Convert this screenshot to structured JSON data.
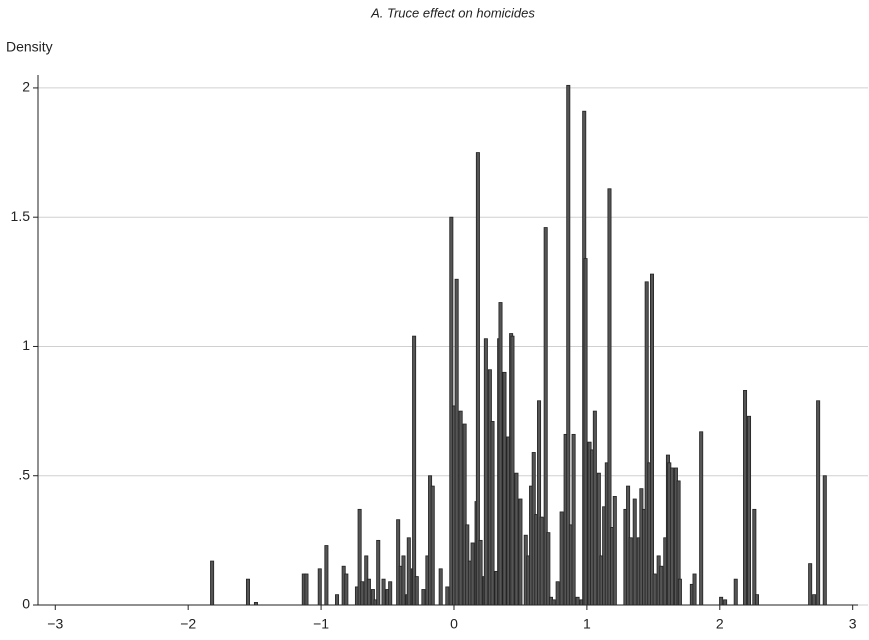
{
  "chart_data": {
    "type": "bar",
    "title": "A. Truce effect on homicides",
    "y_label": "Density",
    "x": [
      -1.82,
      -1.55,
      -1.49,
      -1.13,
      -1.11,
      -1.01,
      -0.96,
      -0.88,
      -0.83,
      -0.81,
      -0.73,
      -0.71,
      -0.69,
      -0.66,
      -0.64,
      -0.61,
      -0.59,
      -0.57,
      -0.53,
      -0.5,
      -0.48,
      -0.42,
      -0.4,
      -0.38,
      -0.35,
      -0.34,
      -0.31,
      -0.3,
      -0.28,
      -0.23,
      -0.2,
      -0.18,
      -0.16,
      -0.1,
      -0.05,
      -0.02,
      0.0,
      0.02,
      0.05,
      0.08,
      0.1,
      0.12,
      0.14,
      0.17,
      0.18,
      0.2,
      0.23,
      0.24,
      0.27,
      0.29,
      0.32,
      0.34,
      0.35,
      0.38,
      0.41,
      0.43,
      0.44,
      0.47,
      0.5,
      0.54,
      0.56,
      0.58,
      0.6,
      0.62,
      0.64,
      0.66,
      0.69,
      0.71,
      0.73,
      0.75,
      0.78,
      0.81,
      0.84,
      0.86,
      0.88,
      0.9,
      0.93,
      0.96,
      0.98,
      0.99,
      1.02,
      1.04,
      1.06,
      1.09,
      1.11,
      1.13,
      1.15,
      1.17,
      1.19,
      1.21,
      1.29,
      1.31,
      1.33,
      1.36,
      1.39,
      1.41,
      1.43,
      1.45,
      1.47,
      1.49,
      1.51,
      1.54,
      1.56,
      1.59,
      1.61,
      1.62,
      1.64,
      1.67,
      1.69,
      1.7,
      1.79,
      1.81,
      1.86,
      2.01,
      2.04,
      2.12,
      2.19,
      2.22,
      2.26,
      2.28,
      2.68,
      2.71,
      2.74,
      2.79
    ],
    "values": [
      0.17,
      0.1,
      0.01,
      0.12,
      0.12,
      0.14,
      0.23,
      0.04,
      0.15,
      0.12,
      0.07,
      0.37,
      0.09,
      0.19,
      0.1,
      0.06,
      0.02,
      0.25,
      0.1,
      0.06,
      0.09,
      0.33,
      0.15,
      0.19,
      0.04,
      0.26,
      0.14,
      1.04,
      0.11,
      0.06,
      0.19,
      0.5,
      0.46,
      0.14,
      0.07,
      1.5,
      0.77,
      1.26,
      0.75,
      0.7,
      0.31,
      0.17,
      0.24,
      0.4,
      1.75,
      0.25,
      0.11,
      1.03,
      0.91,
      0.71,
      0.13,
      1.03,
      1.17,
      0.9,
      0.65,
      1.05,
      1.04,
      0.51,
      0.41,
      0.27,
      0.19,
      0.46,
      0.59,
      0.35,
      0.79,
      0.34,
      1.46,
      0.28,
      0.03,
      0.02,
      0.09,
      0.36,
      0.66,
      2.01,
      0.31,
      0.66,
      0.03,
      0.02,
      1.91,
      1.34,
      0.63,
      0.6,
      0.75,
      0.51,
      0.19,
      0.38,
      0.55,
      1.61,
      0.3,
      0.42,
      0.37,
      0.46,
      0.26,
      0.41,
      0.26,
      0.45,
      0.37,
      1.25,
      0.55,
      1.28,
      0.12,
      0.19,
      0.15,
      0.26,
      0.58,
      0.55,
      0.53,
      0.53,
      0.48,
      0.1,
      0.08,
      0.12,
      0.67,
      0.03,
      0.02,
      0.1,
      0.83,
      0.73,
      0.37,
      0.04,
      0.16,
      0.04,
      0.79,
      0.5
    ],
    "color": "#555555",
    "xlim": [
      -3.13,
      3.04
    ],
    "ylim": [
      0,
      2.05
    ],
    "xticks": [
      {
        "value": -3,
        "label": "−3"
      },
      {
        "value": -2,
        "label": "−2"
      },
      {
        "value": -1,
        "label": "−1"
      },
      0,
      1,
      2,
      3
    ],
    "yticks": [
      0,
      {
        "value": 0.5,
        "label": ".5"
      },
      1,
      1.5,
      2
    ],
    "grid": true
  }
}
